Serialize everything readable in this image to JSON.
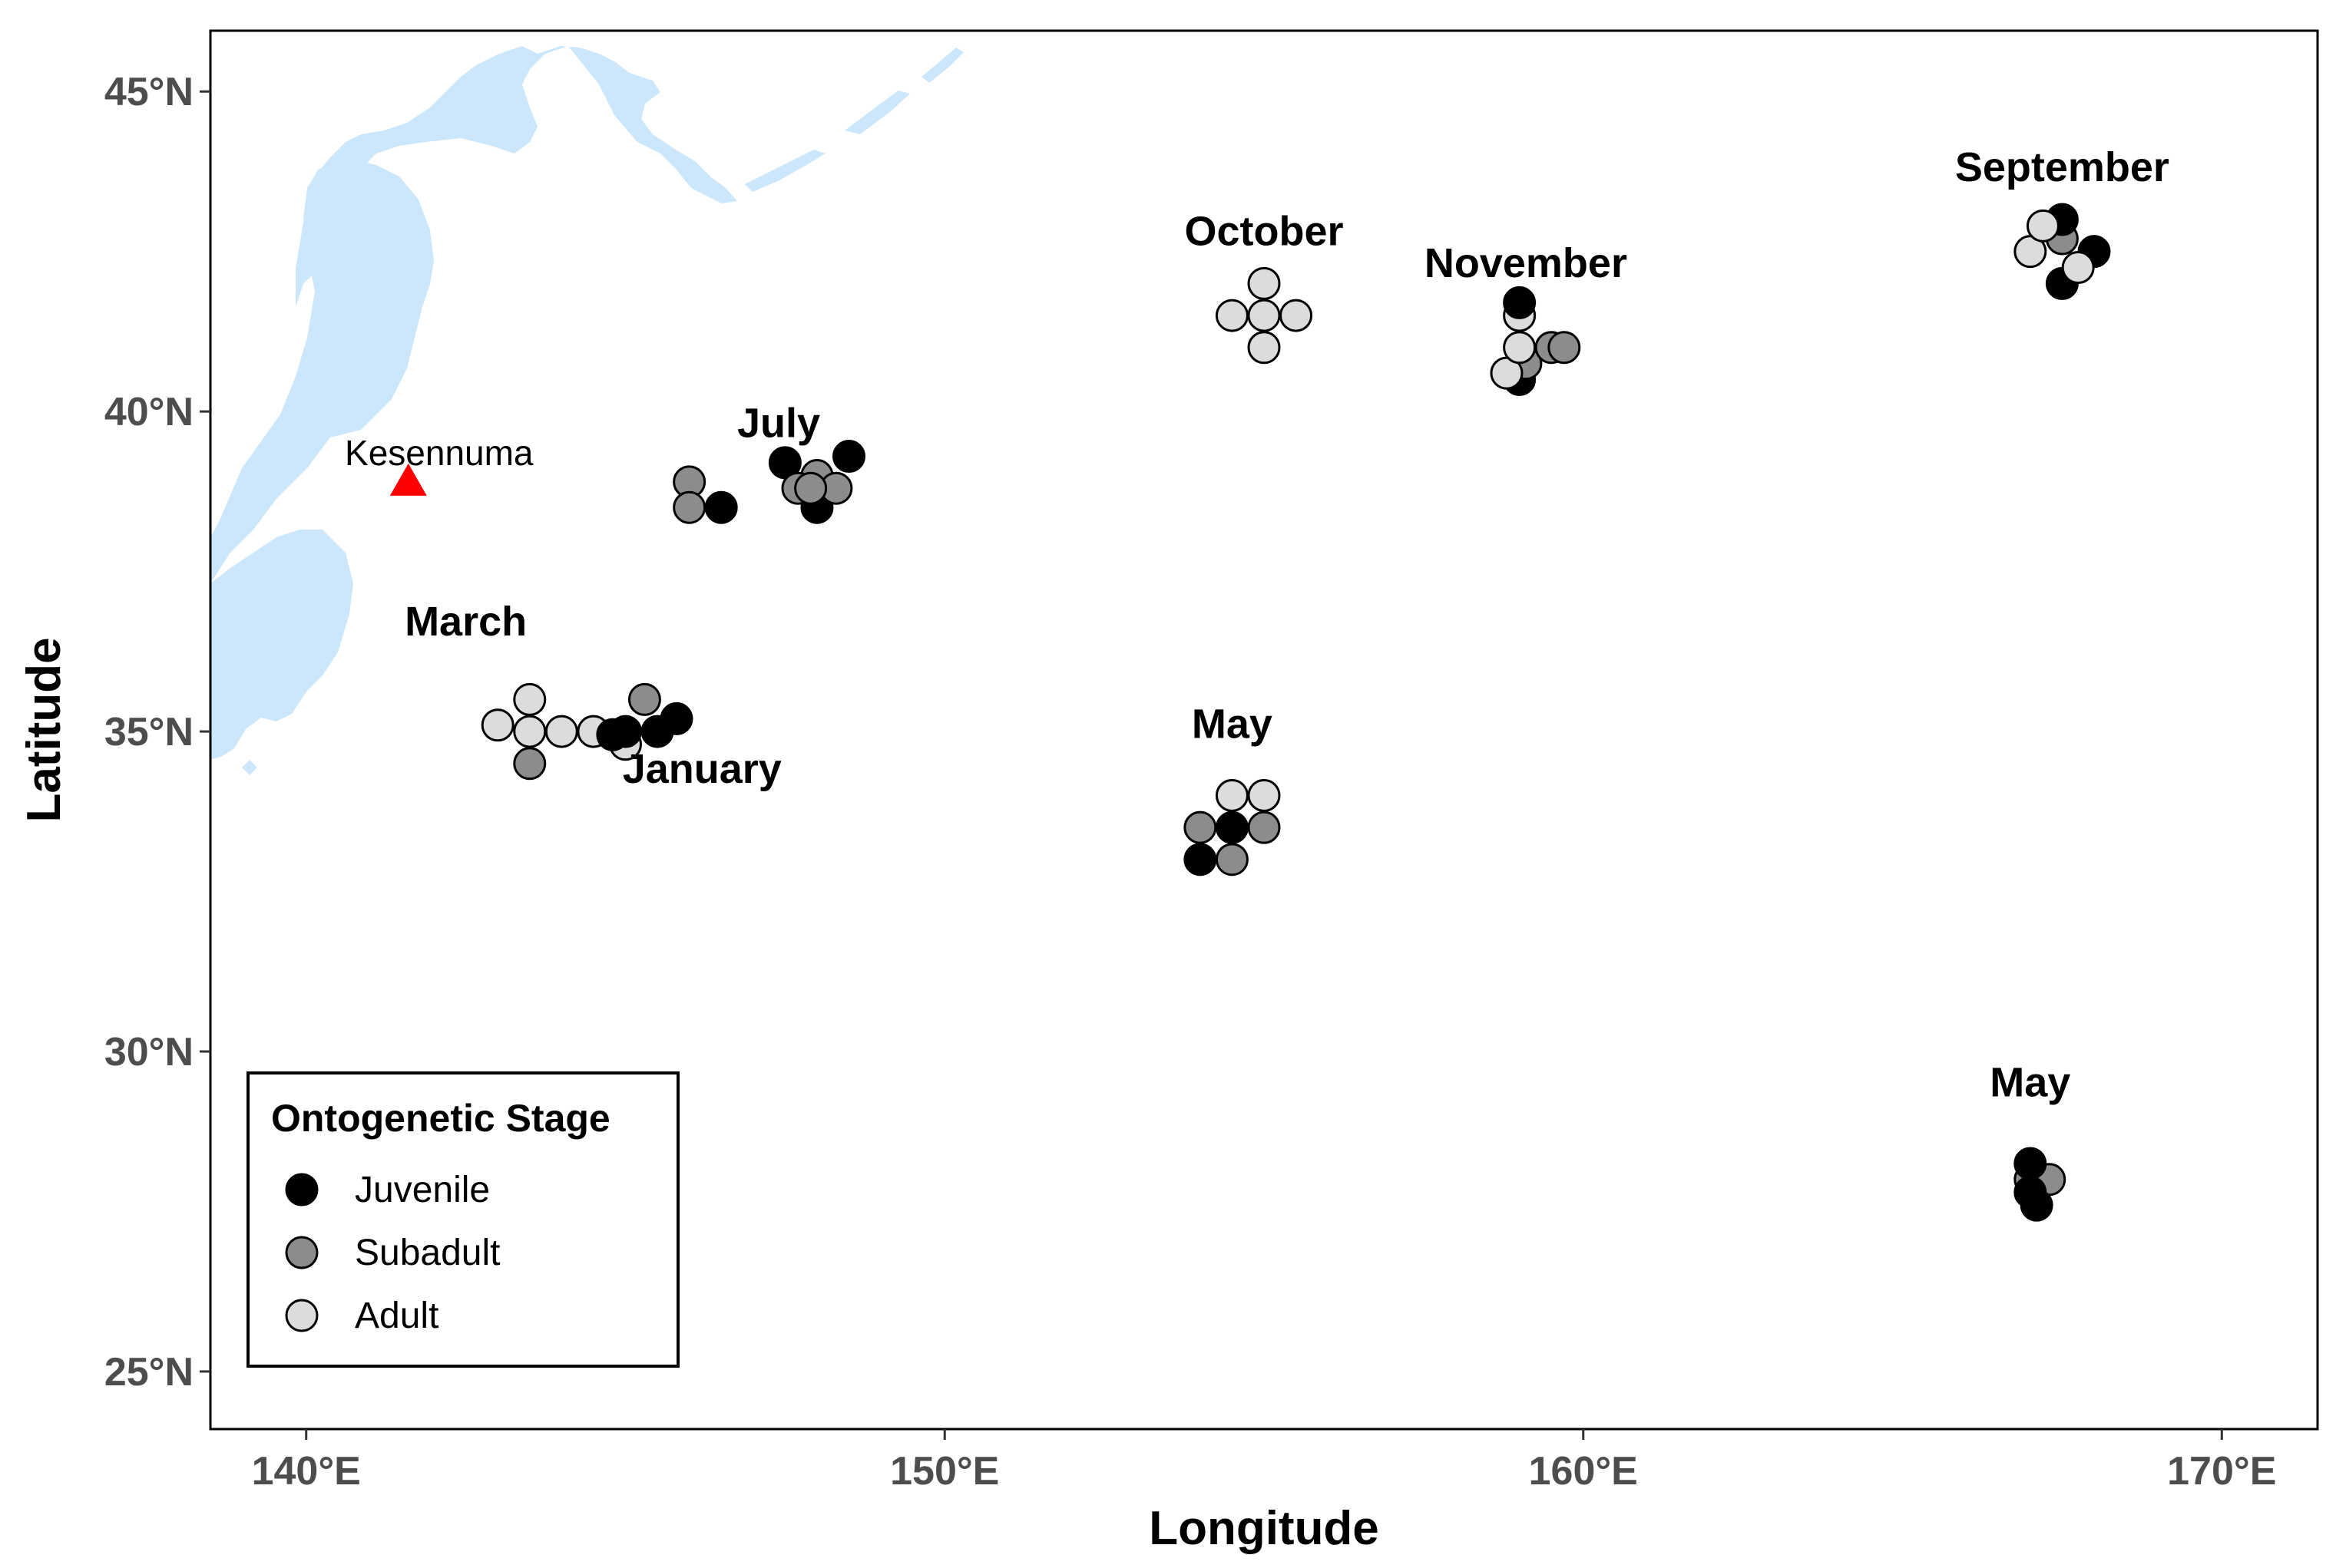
{
  "chart_data": {
    "type": "scatter",
    "xlabel": "Longitude",
    "ylabel": "Latitude",
    "xlim": [
      138.5,
      171.5
    ],
    "ylim": [
      24.1,
      45.95
    ],
    "x_ticks": [
      {
        "value": 140,
        "label": "140°E"
      },
      {
        "value": 150,
        "label": "150°E"
      },
      {
        "value": 160,
        "label": "160°E"
      },
      {
        "value": 170,
        "label": "170°E"
      }
    ],
    "y_ticks": [
      {
        "value": 25,
        "label": "25°N"
      },
      {
        "value": 30,
        "label": "30°N"
      },
      {
        "value": 35,
        "label": "35°N"
      },
      {
        "value": 40,
        "label": "40°N"
      },
      {
        "value": 45,
        "label": "45°N"
      }
    ],
    "grid": false,
    "legend": {
      "title": "Ontogenetic Stage",
      "placement": "bottom-left",
      "entries": [
        "Juvenile",
        "Subadult",
        "Adult"
      ]
    },
    "stage_colors": {
      "Juvenile": "#000000",
      "Subadult": "#8c8c8c",
      "Adult": "#dcdcdc"
    },
    "land_color": "#cce6fb",
    "marker": {
      "name": "Kesennuma",
      "lon": 141.6,
      "lat": 38.9,
      "color": "#ff0000",
      "shape": "triangle"
    },
    "month_labels": [
      {
        "text": "March",
        "lon": 142.5,
        "lat": 36.5
      },
      {
        "text": "January",
        "lon": 146.2,
        "lat": 34.2
      },
      {
        "text": "July",
        "lon": 147.4,
        "lat": 39.6
      },
      {
        "text": "May",
        "lon": 154.5,
        "lat": 34.9
      },
      {
        "text": "October",
        "lon": 155.0,
        "lat": 42.6
      },
      {
        "text": "November",
        "lon": 159.1,
        "lat": 42.1
      },
      {
        "text": "September",
        "lon": 167.5,
        "lat": 43.6
      },
      {
        "text": "May",
        "lon": 167.0,
        "lat": 29.3
      }
    ],
    "points": [
      {
        "lon": 144.5,
        "lat": 35.0,
        "stage": "Adult"
      },
      {
        "lon": 145.0,
        "lat": 34.8,
        "stage": "Adult"
      },
      {
        "lon": 145.3,
        "lat": 35.5,
        "stage": "Subadult"
      },
      {
        "lon": 144.8,
        "lat": 34.95,
        "stage": "Juvenile"
      },
      {
        "lon": 145.0,
        "lat": 35.0,
        "stage": "Juvenile"
      },
      {
        "lon": 145.5,
        "lat": 35.0,
        "stage": "Juvenile"
      },
      {
        "lon": 145.8,
        "lat": 35.2,
        "stage": "Juvenile"
      },
      {
        "lon": 143.0,
        "lat": 35.1,
        "stage": "Adult"
      },
      {
        "lon": 143.5,
        "lat": 35.5,
        "stage": "Adult"
      },
      {
        "lon": 143.5,
        "lat": 35.0,
        "stage": "Adult"
      },
      {
        "lon": 144.0,
        "lat": 35.0,
        "stage": "Adult"
      },
      {
        "lon": 143.5,
        "lat": 34.5,
        "stage": "Subadult"
      },
      {
        "lon": 146.0,
        "lat": 38.9,
        "stage": "Subadult"
      },
      {
        "lon": 146.0,
        "lat": 38.5,
        "stage": "Subadult"
      },
      {
        "lon": 146.5,
        "lat": 38.5,
        "stage": "Juvenile"
      },
      {
        "lon": 147.5,
        "lat": 39.2,
        "stage": "Juvenile"
      },
      {
        "lon": 148.5,
        "lat": 39.3,
        "stage": "Juvenile"
      },
      {
        "lon": 148.0,
        "lat": 38.5,
        "stage": "Juvenile"
      },
      {
        "lon": 148.0,
        "lat": 39.0,
        "stage": "Subadult"
      },
      {
        "lon": 147.7,
        "lat": 38.8,
        "stage": "Subadult"
      },
      {
        "lon": 148.3,
        "lat": 38.8,
        "stage": "Subadult"
      },
      {
        "lon": 147.9,
        "lat": 38.8,
        "stage": "Subadult"
      },
      {
        "lon": 155.0,
        "lat": 42.0,
        "stage": "Adult"
      },
      {
        "lon": 154.5,
        "lat": 41.5,
        "stage": "Adult"
      },
      {
        "lon": 155.0,
        "lat": 41.5,
        "stage": "Adult"
      },
      {
        "lon": 155.5,
        "lat": 41.5,
        "stage": "Adult"
      },
      {
        "lon": 155.0,
        "lat": 41.0,
        "stage": "Adult"
      },
      {
        "lon": 154.5,
        "lat": 34.0,
        "stage": "Adult"
      },
      {
        "lon": 155.0,
        "lat": 34.0,
        "stage": "Adult"
      },
      {
        "lon": 154.0,
        "lat": 33.5,
        "stage": "Subadult"
      },
      {
        "lon": 155.0,
        "lat": 33.5,
        "stage": "Subadult"
      },
      {
        "lon": 154.5,
        "lat": 33.0,
        "stage": "Subadult"
      },
      {
        "lon": 154.5,
        "lat": 33.5,
        "stage": "Juvenile"
      },
      {
        "lon": 154.0,
        "lat": 33.0,
        "stage": "Juvenile"
      },
      {
        "lon": 159.0,
        "lat": 40.5,
        "stage": "Juvenile"
      },
      {
        "lon": 159.1,
        "lat": 40.75,
        "stage": "Subadult"
      },
      {
        "lon": 159.5,
        "lat": 41.0,
        "stage": "Subadult"
      },
      {
        "lon": 159.7,
        "lat": 41.0,
        "stage": "Subadult"
      },
      {
        "lon": 158.8,
        "lat": 40.6,
        "stage": "Adult"
      },
      {
        "lon": 159.0,
        "lat": 41.5,
        "stage": "Adult"
      },
      {
        "lon": 159.0,
        "lat": 41.0,
        "stage": "Adult"
      },
      {
        "lon": 159.0,
        "lat": 41.7,
        "stage": "Juvenile"
      },
      {
        "lon": 167.5,
        "lat": 42.7,
        "stage": "Subadult"
      },
      {
        "lon": 167.5,
        "lat": 43.0,
        "stage": "Juvenile"
      },
      {
        "lon": 168.0,
        "lat": 42.5,
        "stage": "Juvenile"
      },
      {
        "lon": 167.5,
        "lat": 42.0,
        "stage": "Juvenile"
      },
      {
        "lon": 167.0,
        "lat": 42.5,
        "stage": "Adult"
      },
      {
        "lon": 167.2,
        "lat": 42.9,
        "stage": "Adult"
      },
      {
        "lon": 167.75,
        "lat": 42.25,
        "stage": "Adult"
      },
      {
        "lon": 167.0,
        "lat": 28.0,
        "stage": "Subadult"
      },
      {
        "lon": 167.3,
        "lat": 28.0,
        "stage": "Subadult"
      },
      {
        "lon": 167.0,
        "lat": 28.25,
        "stage": "Juvenile"
      },
      {
        "lon": 167.0,
        "lat": 27.8,
        "stage": "Juvenile"
      },
      {
        "lon": 167.1,
        "lat": 27.6,
        "stage": "Juvenile"
      }
    ]
  }
}
